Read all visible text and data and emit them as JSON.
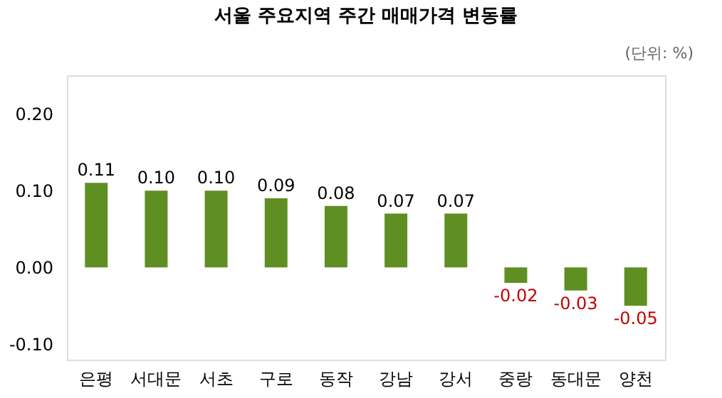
{
  "chart_data": {
    "type": "bar",
    "title": "서울 주요지역 주간 매매가격 변동률",
    "annotations": [
      "(단위: %)"
    ],
    "categories": [
      "은평",
      "서대문",
      "서초",
      "구로",
      "동작",
      "강남",
      "강서",
      "중랑",
      "동대문",
      "양천"
    ],
    "values": [
      0.11,
      0.1,
      0.1,
      0.09,
      0.08,
      0.07,
      0.07,
      -0.02,
      -0.03,
      -0.05
    ],
    "value_labels": [
      "0.11",
      "0.10",
      "0.10",
      "0.09",
      "0.08",
      "0.07",
      "0.07",
      "-0.02",
      "-0.03",
      "-0.05"
    ],
    "color": "#5f8f23",
    "ylim": [
      -0.12,
      0.25
    ],
    "yticks": [
      {
        "value": -0.1,
        "label": "-0.10"
      },
      {
        "value": 0,
        "label": "0.00"
      },
      {
        "value": 0.1,
        "label": "0.10"
      },
      {
        "value": 0.2,
        "label": "0.20"
      }
    ],
    "grid": false
  }
}
